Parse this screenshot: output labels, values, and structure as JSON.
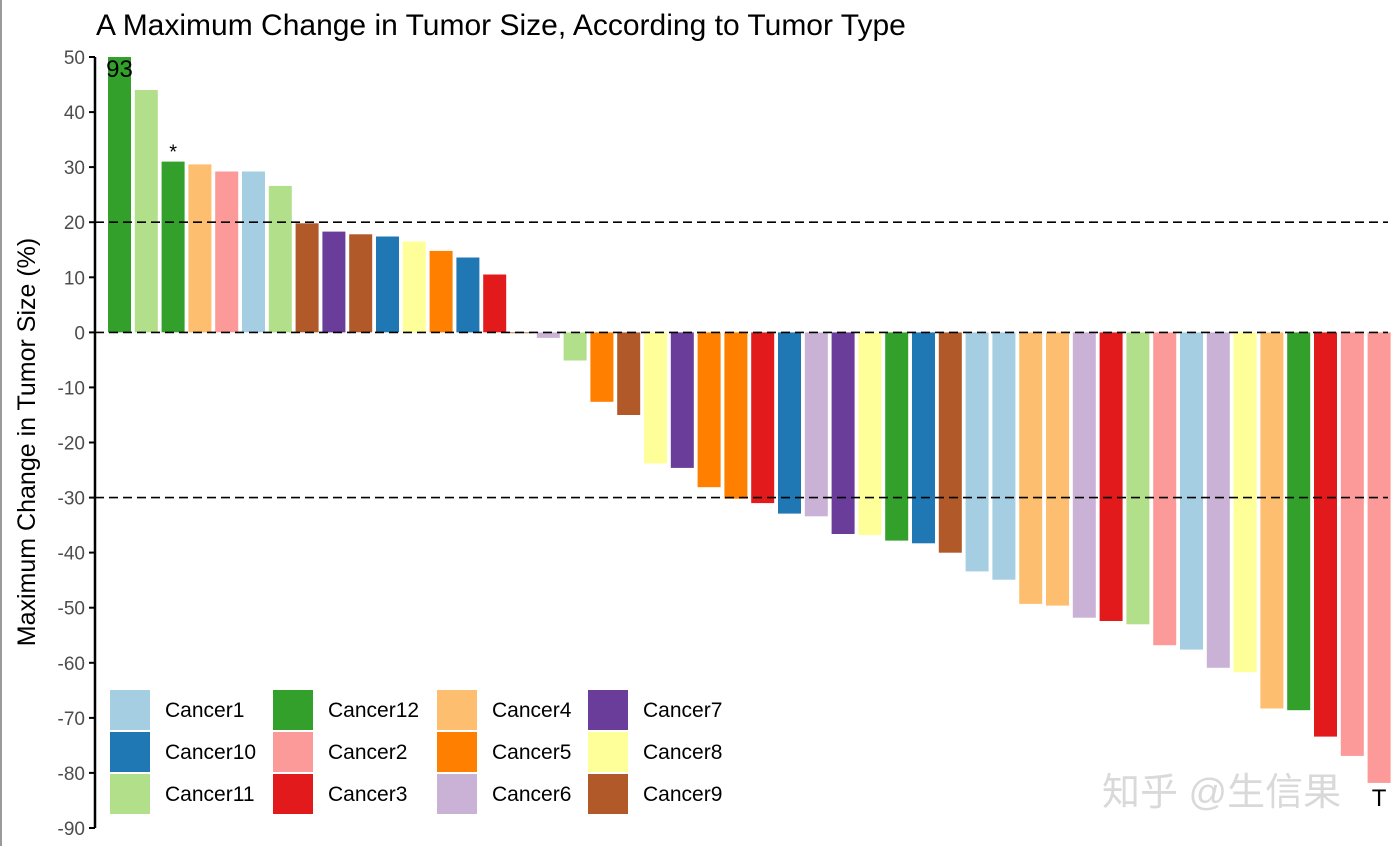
{
  "chart_data": {
    "type": "bar",
    "title": "A Maximum Change in Tumor Size, According to Tumor Type",
    "xlabel": "",
    "ylabel": "Maximum Change in Tumor Size (%)",
    "ylim": [
      -90,
      50
    ],
    "yticks": [
      50,
      40,
      30,
      20,
      10,
      0,
      -10,
      -20,
      -30,
      -40,
      -50,
      -60,
      -70,
      -80,
      -90
    ],
    "reference_lines": [
      20,
      0,
      -30
    ],
    "grid": false,
    "legend_position": "bottom-left",
    "types": [
      "Cancer1",
      "Cancer10",
      "Cancer11",
      "Cancer12",
      "Cancer2",
      "Cancer3",
      "Cancer4",
      "Cancer5",
      "Cancer6",
      "Cancer7",
      "Cancer8",
      "Cancer9"
    ],
    "colors": {
      "Cancer1": "#A6CEE3",
      "Cancer10": "#1F78B4",
      "Cancer11": "#B2DF8A",
      "Cancer12": "#33A02C",
      "Cancer2": "#FB9A99",
      "Cancer3": "#E31A1C",
      "Cancer4": "#FDBF6F",
      "Cancer5": "#FF7F00",
      "Cancer6": "#CAB2D6",
      "Cancer7": "#6A3D9A",
      "Cancer8": "#FFFF99",
      "Cancer9": "#B15928"
    },
    "bars": [
      {
        "type": "Cancer12",
        "value": 50,
        "label": "93"
      },
      {
        "type": "Cancer11",
        "value": 44
      },
      {
        "type": "Cancer12",
        "value": 31,
        "label": "*"
      },
      {
        "type": "Cancer4",
        "value": 30.5
      },
      {
        "type": "Cancer2",
        "value": 29.2
      },
      {
        "type": "Cancer1",
        "value": 29.2
      },
      {
        "type": "Cancer11",
        "value": 26.6
      },
      {
        "type": "Cancer9",
        "value": 19.8
      },
      {
        "type": "Cancer7",
        "value": 18.3
      },
      {
        "type": "Cancer9",
        "value": 17.8
      },
      {
        "type": "Cancer10",
        "value": 17.4
      },
      {
        "type": "Cancer8",
        "value": 16.5
      },
      {
        "type": "Cancer5",
        "value": 14.8
      },
      {
        "type": "Cancer10",
        "value": 13.6
      },
      {
        "type": "Cancer3",
        "value": 10.5
      },
      {
        "type": "Cancer9",
        "value": 0
      },
      {
        "type": "Cancer6",
        "value": -1
      },
      {
        "type": "Cancer11",
        "value": -5.1
      },
      {
        "type": "Cancer5",
        "value": -12.6
      },
      {
        "type": "Cancer9",
        "value": -15
      },
      {
        "type": "Cancer8",
        "value": -23.8
      },
      {
        "type": "Cancer7",
        "value": -24.6
      },
      {
        "type": "Cancer5",
        "value": -28.1
      },
      {
        "type": "Cancer5",
        "value": -30.2
      },
      {
        "type": "Cancer3",
        "value": -31
      },
      {
        "type": "Cancer10",
        "value": -32.9
      },
      {
        "type": "Cancer6",
        "value": -33.4
      },
      {
        "type": "Cancer7",
        "value": -36.6
      },
      {
        "type": "Cancer8",
        "value": -36.8
      },
      {
        "type": "Cancer12",
        "value": -37.8
      },
      {
        "type": "Cancer10",
        "value": -38.3
      },
      {
        "type": "Cancer9",
        "value": -40
      },
      {
        "type": "Cancer1",
        "value": -43.4
      },
      {
        "type": "Cancer1",
        "value": -44.9
      },
      {
        "type": "Cancer4",
        "value": -49.3
      },
      {
        "type": "Cancer4",
        "value": -49.6
      },
      {
        "type": "Cancer6",
        "value": -51.8
      },
      {
        "type": "Cancer3",
        "value": -52.4
      },
      {
        "type": "Cancer11",
        "value": -53
      },
      {
        "type": "Cancer2",
        "value": -56.8
      },
      {
        "type": "Cancer1",
        "value": -57.6
      },
      {
        "type": "Cancer6",
        "value": -60.9
      },
      {
        "type": "Cancer8",
        "value": -61.7
      },
      {
        "type": "Cancer4",
        "value": -68.3
      },
      {
        "type": "Cancer12",
        "value": -68.6
      },
      {
        "type": "Cancer3",
        "value": -73.4
      },
      {
        "type": "Cancer2",
        "value": -76.9
      },
      {
        "type": "Cancer2",
        "value": -81.8,
        "label": "T"
      }
    ]
  },
  "watermark": {
    "text": "知乎 @生信果"
  }
}
